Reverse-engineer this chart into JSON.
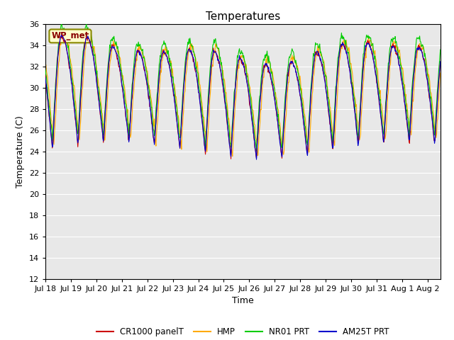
{
  "title": "Temperatures",
  "ylabel": "Temperature (C)",
  "xlabel": "Time",
  "ylim": [
    12,
    36
  ],
  "yticks": [
    12,
    14,
    16,
    18,
    20,
    22,
    24,
    26,
    28,
    30,
    32,
    34,
    36
  ],
  "station_label": "WP_met",
  "legend_entries": [
    "CR1000 panelT",
    "HMP",
    "NR01 PRT",
    "AM25T PRT"
  ],
  "line_colors": [
    "#cc0000",
    "#ffaa00",
    "#00cc00",
    "#0000cc"
  ],
  "xtick_labels": [
    "Jul 18",
    "Jul 19",
    "Jul 20",
    "Jul 21",
    "Jul 22",
    "Jul 23",
    "Jul 24",
    "Jul 25",
    "Jul 26",
    "Jul 27",
    "Jul 28",
    "Jul 29",
    "Jul 30",
    "Jul 31",
    "Aug 1",
    "Aug 2"
  ],
  "bg_color": "#e8e8e8",
  "n_days": 15.5,
  "n_points": 744
}
